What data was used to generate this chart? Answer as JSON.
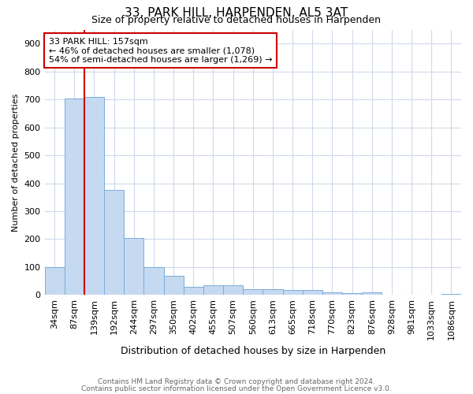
{
  "title1": "33, PARK HILL, HARPENDEN, AL5 3AT",
  "title2": "Size of property relative to detached houses in Harpenden",
  "xlabel": "Distribution of detached houses by size in Harpenden",
  "ylabel": "Number of detached properties",
  "categories": [
    "34sqm",
    "87sqm",
    "139sqm",
    "192sqm",
    "244sqm",
    "297sqm",
    "350sqm",
    "402sqm",
    "455sqm",
    "507sqm",
    "560sqm",
    "613sqm",
    "665sqm",
    "718sqm",
    "770sqm",
    "823sqm",
    "876sqm",
    "928sqm",
    "981sqm",
    "1033sqm",
    "1086sqm"
  ],
  "values": [
    100,
    703,
    710,
    375,
    205,
    100,
    70,
    30,
    35,
    35,
    22,
    22,
    18,
    18,
    10,
    8,
    10,
    0,
    0,
    0,
    5
  ],
  "bar_color": "#c5d9f0",
  "bar_edge_color": "#7aadda",
  "highlight_index": 2,
  "highlight_color": "#cc0000",
  "ylim": [
    0,
    950
  ],
  "yticks": [
    0,
    100,
    200,
    300,
    400,
    500,
    600,
    700,
    800,
    900
  ],
  "annotation_title": "33 PARK HILL: 157sqm",
  "annotation_line1": "← 46% of detached houses are smaller (1,078)",
  "annotation_line2": "54% of semi-detached houses are larger (1,269) →",
  "annotation_box_facecolor": "#ffffff",
  "annotation_box_edgecolor": "#cc0000",
  "footer1": "Contains HM Land Registry data © Crown copyright and database right 2024.",
  "footer2": "Contains public sector information licensed under the Open Government Licence v3.0.",
  "bg_color": "#ffffff",
  "grid_color": "#d0daea",
  "title1_fontsize": 11,
  "title2_fontsize": 9,
  "xlabel_fontsize": 9,
  "ylabel_fontsize": 8,
  "tick_fontsize": 8,
  "annot_fontsize": 8
}
